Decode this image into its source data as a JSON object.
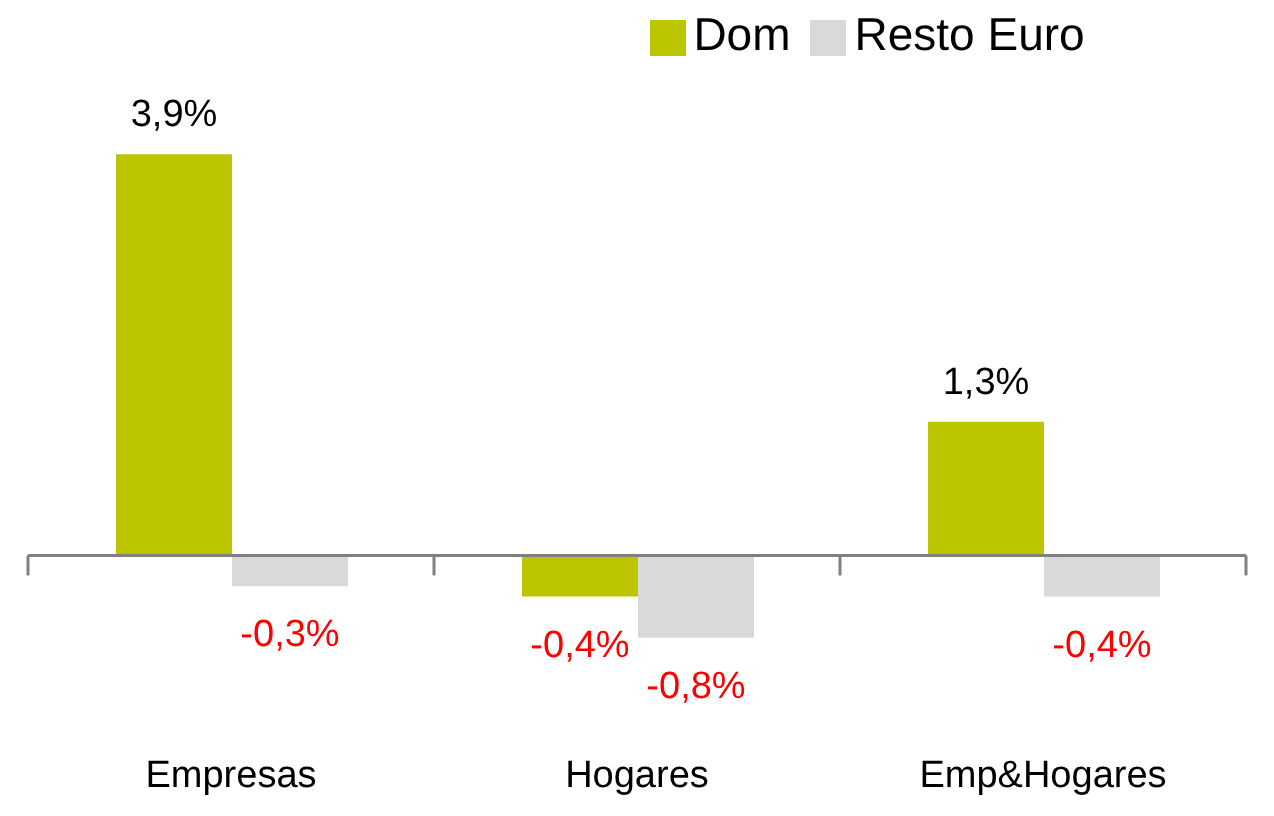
{
  "chart_data": {
    "type": "bar",
    "categories": [
      "Empresas",
      "Hogares",
      "Emp&Hogares"
    ],
    "series": [
      {
        "name": "Dom",
        "color": "#bcc600",
        "values": [
          3.9,
          -0.4,
          1.3
        ],
        "value_labels": [
          "3,9%",
          "-0,4%",
          "1,3%"
        ]
      },
      {
        "name": "Resto Euro",
        "color": "#d9d9d9",
        "values": [
          -0.3,
          -0.8,
          -0.4
        ],
        "value_labels": [
          "-0,3%",
          "-0,8%",
          "-0,4%"
        ]
      }
    ],
    "legend": "top"
  }
}
